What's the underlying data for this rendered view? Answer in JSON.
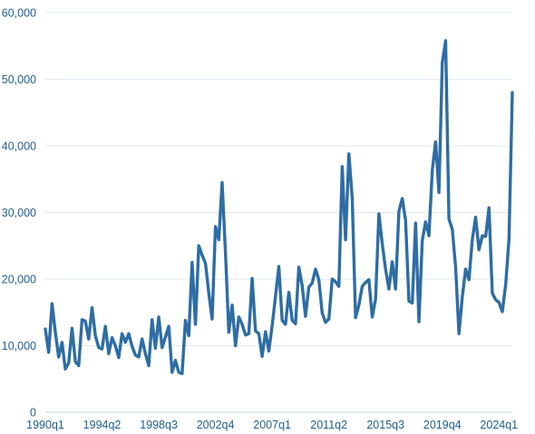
{
  "chart_data": {
    "type": "line",
    "title": "",
    "xlabel": "",
    "ylabel": "",
    "ylim": [
      0,
      60000
    ],
    "y_ticks": [
      "0",
      "10,000",
      "20,000",
      "30,000",
      "40,000",
      "50,000",
      "60,000"
    ],
    "x_tick_labels": [
      "1990q1",
      "1994q2",
      "1998q3",
      "2002q4",
      "2007q1",
      "2011q2",
      "2015q3",
      "2019q4",
      "2024q1"
    ],
    "grid": true,
    "colors": {
      "line": "#2e6da4",
      "text": "#1f5f8f",
      "grid": "#e2e8ee"
    },
    "series": [
      {
        "start_quarter": "1990q1",
        "values": [
          12500,
          9000,
          16300,
          12000,
          8300,
          10500,
          6500,
          7400,
          12600,
          7600,
          7000,
          13900,
          13700,
          11000,
          15700,
          11500,
          9700,
          9500,
          12900,
          8800,
          11200,
          10000,
          8200,
          11800,
          10500,
          11800,
          9900,
          8600,
          8300,
          11000,
          8800,
          7000,
          13900,
          9600,
          14300,
          9700,
          11300,
          12900,
          6000,
          7800,
          6000,
          5800,
          13800,
          11500,
          22500,
          13200,
          25000,
          23600,
          22400,
          17900,
          14000,
          27900,
          25900,
          34500,
          24000,
          12000,
          16100,
          10000,
          14300,
          13200,
          11600,
          11800,
          20100,
          12200,
          11800,
          8400,
          12100,
          9200,
          13000,
          17400,
          21900,
          13800,
          13200,
          18000,
          13800,
          13300,
          21800,
          19000,
          14400,
          18800,
          19400,
          21500,
          19900,
          14900,
          13500,
          14000,
          20000,
          19600,
          18900,
          36900,
          25900,
          38800,
          32200,
          14200,
          16100,
          18900,
          19500,
          19900,
          14300,
          17000,
          29800,
          25300,
          21500,
          18500,
          22600,
          18500,
          30200,
          32100,
          28800,
          16700,
          16400,
          28400,
          13600,
          25800,
          28600,
          26500,
          36300,
          40600,
          33000,
          52500,
          55800,
          29000,
          27500,
          21800,
          11800,
          17300,
          21500,
          19900,
          25900,
          29300,
          24400,
          26500,
          26400,
          30700,
          17900,
          16900,
          16500,
          15100,
          19100,
          26000,
          48000
        ]
      }
    ]
  }
}
